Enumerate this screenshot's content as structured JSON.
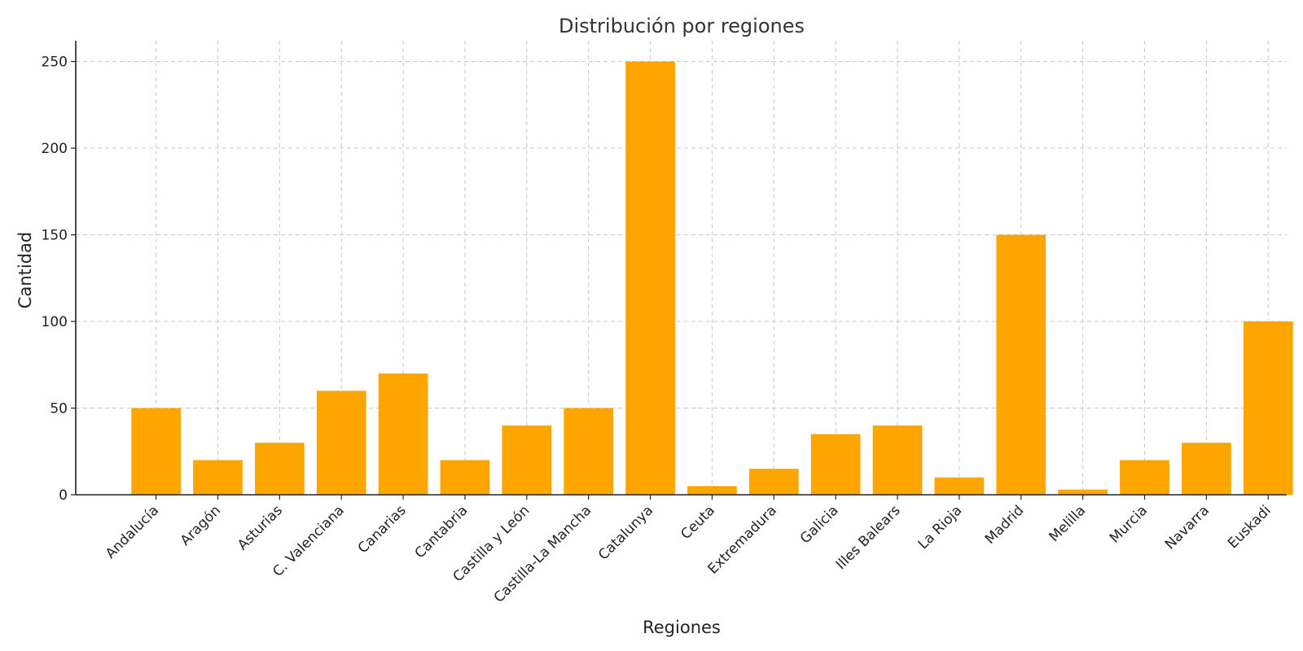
{
  "chart_data": {
    "type": "bar",
    "title": "Distribución por regiones",
    "xlabel": "Regiones",
    "ylabel": "Cantidad",
    "categories": [
      "Andalucía",
      "Aragón",
      "Asturias",
      "C. Valenciana",
      "Canarias",
      "Cantabria",
      "Castilla y León",
      "Castilla-La Mancha",
      "Catalunya",
      "Ceuta",
      "Extremadura",
      "Galicia",
      "Illes Balears",
      "La Rioja",
      "Madrid",
      "Melilla",
      "Murcia",
      "Navarra",
      "Euskadi"
    ],
    "values": [
      50,
      20,
      30,
      60,
      70,
      20,
      40,
      50,
      250,
      5,
      15,
      35,
      40,
      10,
      150,
      3,
      20,
      30,
      100
    ],
    "ylim": [
      0,
      262
    ],
    "yticks": [
      0,
      50,
      100,
      150,
      200,
      250
    ],
    "bar_color": "#FFA500",
    "grid": true,
    "legend": false
  }
}
